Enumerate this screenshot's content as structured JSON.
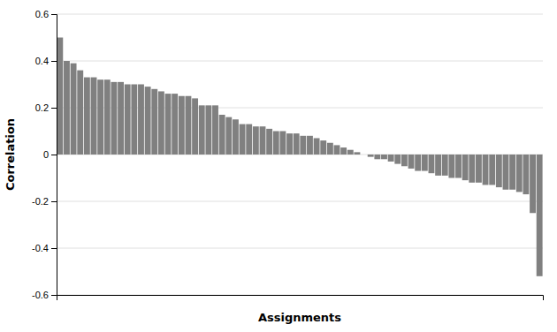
{
  "chart_data": {
    "type": "bar",
    "values": [
      0.5,
      0.4,
      0.39,
      0.36,
      0.33,
      0.33,
      0.32,
      0.32,
      0.31,
      0.31,
      0.3,
      0.3,
      0.3,
      0.29,
      0.28,
      0.27,
      0.26,
      0.26,
      0.25,
      0.25,
      0.24,
      0.21,
      0.21,
      0.21,
      0.17,
      0.16,
      0.15,
      0.13,
      0.13,
      0.12,
      0.12,
      0.11,
      0.1,
      0.1,
      0.09,
      0.09,
      0.08,
      0.08,
      0.07,
      0.06,
      0.05,
      0.04,
      0.03,
      0.02,
      0.01,
      0.0,
      -0.01,
      -0.02,
      -0.02,
      -0.03,
      -0.04,
      -0.05,
      -0.06,
      -0.07,
      -0.07,
      -0.08,
      -0.09,
      -0.09,
      -0.1,
      -0.1,
      -0.11,
      -0.12,
      -0.12,
      -0.13,
      -0.13,
      -0.14,
      -0.15,
      -0.15,
      -0.16,
      -0.17,
      -0.25,
      -0.52
    ],
    "color": "#808080",
    "xlabel": "Assignments",
    "ylabel": "Correlation",
    "ylim": [
      -0.6,
      0.6
    ],
    "yticks": [
      -0.6,
      -0.4,
      -0.2,
      0,
      0.2,
      0.4,
      0.6
    ],
    "grid": true,
    "tick_labels": "y"
  }
}
